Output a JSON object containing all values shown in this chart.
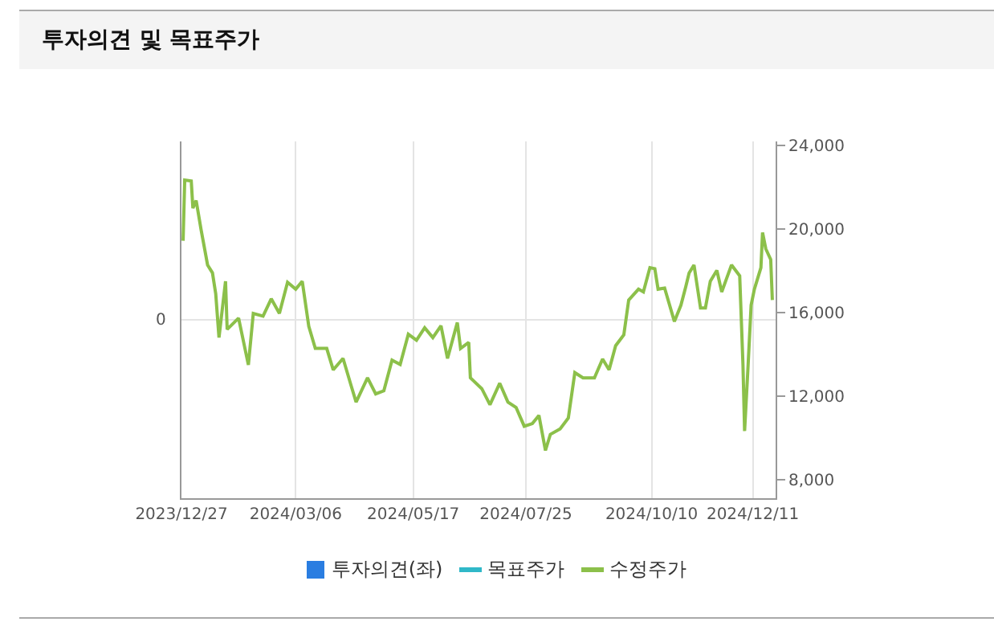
{
  "chart_data": {
    "type": "line",
    "title": "투자의견 및 목표주가",
    "x": [
      "2023-12-28",
      "2023-12-29",
      "2024-01-02",
      "2024-01-03",
      "2024-01-05",
      "2024-01-08",
      "2024-01-12",
      "2024-01-15",
      "2024-01-17",
      "2024-01-19",
      "2024-01-23",
      "2024-01-24",
      "2024-01-31",
      "2024-02-06",
      "2024-02-09",
      "2024-02-15",
      "2024-02-20",
      "2024-02-25",
      "2024-03-01",
      "2024-03-06",
      "2024-03-10",
      "2024-03-14",
      "2024-03-18",
      "2024-03-25",
      "2024-03-29",
      "2024-04-04",
      "2024-04-09",
      "2024-04-12",
      "2024-04-19",
      "2024-04-24",
      "2024-04-29",
      "2024-05-04",
      "2024-05-09",
      "2024-05-14",
      "2024-05-19",
      "2024-05-24",
      "2024-05-29",
      "2024-06-03",
      "2024-06-07",
      "2024-06-13",
      "2024-06-15",
      "2024-06-20",
      "2024-06-21",
      "2024-06-28",
      "2024-07-03",
      "2024-07-09",
      "2024-07-14",
      "2024-07-19",
      "2024-07-24",
      "2024-07-29",
      "2024-08-02",
      "2024-08-06",
      "2024-08-09",
      "2024-08-15",
      "2024-08-20",
      "2024-08-24",
      "2024-08-29",
      "2024-09-05",
      "2024-09-10",
      "2024-09-14",
      "2024-09-18",
      "2024-09-23",
      "2024-09-26",
      "2024-10-02",
      "2024-10-05",
      "2024-10-09",
      "2024-10-12",
      "2024-10-14",
      "2024-10-18",
      "2024-10-24",
      "2024-10-28",
      "2024-10-31",
      "2024-11-02",
      "2024-11-05",
      "2024-11-09",
      "2024-11-12",
      "2024-11-15",
      "2024-11-19",
      "2024-11-22",
      "2024-11-25",
      "2024-11-28",
      "2024-12-03",
      "2024-12-05",
      "2024-12-06",
      "2024-12-08",
      "2024-12-10",
      "2024-12-12",
      "2024-12-16",
      "2024-12-17",
      "2024-12-19",
      "2024-12-22",
      "2024-12-23"
    ],
    "series": [
      {
        "name": "투자의견(좌)",
        "type": "bar",
        "color": "#2a7de1",
        "values": [
          null,
          null,
          null,
          null,
          null,
          null,
          null,
          null,
          null,
          null,
          null,
          null,
          null,
          null,
          null,
          null,
          null,
          null,
          null,
          null,
          null,
          null,
          null,
          null,
          null,
          null,
          null,
          null,
          null,
          null,
          null,
          null,
          null,
          null,
          null,
          null,
          null,
          null,
          null,
          null,
          null,
          null,
          null,
          null,
          null,
          null,
          null,
          null,
          null,
          null,
          null,
          null,
          null,
          null,
          null,
          null,
          null,
          null,
          null,
          null,
          null,
          null,
          null,
          null,
          null,
          null,
          null,
          null,
          null,
          null,
          null,
          null,
          null,
          null,
          null,
          null,
          null,
          null,
          null,
          null,
          null,
          null,
          null,
          null,
          null,
          null,
          null,
          null,
          null,
          null,
          null,
          null
        ]
      },
      {
        "name": "목표주가",
        "axis": "y2",
        "color": "#30b8c8",
        "values": [
          null,
          null,
          null,
          null,
          null,
          null,
          null,
          null,
          null,
          null,
          null,
          null,
          null,
          null,
          null,
          null,
          null,
          null,
          null,
          null,
          null,
          null,
          null,
          null,
          null,
          null,
          null,
          null,
          null,
          null,
          null,
          null,
          null,
          null,
          null,
          null,
          null,
          null,
          null,
          null,
          null,
          null,
          null,
          null,
          null,
          null,
          null,
          null,
          null,
          null,
          null,
          null,
          null,
          null,
          null,
          null,
          null,
          null,
          null,
          null,
          null,
          null,
          null,
          null,
          null,
          null,
          null,
          null,
          null,
          null,
          null,
          null,
          null,
          null,
          null,
          null,
          null,
          null,
          null,
          null,
          null,
          null,
          null,
          null,
          null,
          null,
          null,
          null,
          null,
          null,
          null,
          null
        ]
      },
      {
        "name": "수정주가",
        "axis": "y2",
        "color": "#8cc04a",
        "values": [
          19440,
          22350,
          22300,
          21000,
          21370,
          19980,
          18280,
          17900,
          16890,
          14800,
          17500,
          15190,
          15730,
          13490,
          15960,
          15830,
          16660,
          15960,
          17450,
          17120,
          17500,
          15340,
          14280,
          14280,
          13250,
          13800,
          12480,
          11710,
          12870,
          12100,
          12250,
          13720,
          13510,
          14960,
          14670,
          15270,
          14800,
          15370,
          13800,
          15520,
          14280,
          14570,
          12870,
          12350,
          11580,
          12610,
          11710,
          11450,
          10550,
          10680,
          11070,
          9390,
          10160,
          10420,
          10940,
          13120,
          12870,
          12870,
          13770,
          13250,
          14410,
          14930,
          16600,
          17120,
          16990,
          18150,
          18100,
          17120,
          17170,
          15570,
          16350,
          17250,
          17890,
          18280,
          16220,
          16220,
          17500,
          18020,
          16990,
          17640,
          18280,
          17760,
          13510,
          10320,
          13250,
          16350,
          17120,
          18150,
          19830,
          19050,
          18540,
          16600
        ]
      }
    ],
    "xlim": [
      "2023-12-27",
      "2024-12-25"
    ],
    "xticks": [
      {
        "value": "2023-12-27",
        "label": "2023/12/27"
      },
      {
        "value": "2024-03-06",
        "label": "2024/03/06"
      },
      {
        "value": "2024-05-17",
        "label": "2024/05/17"
      },
      {
        "value": "2024-07-25",
        "label": "2024/07/25"
      },
      {
        "value": "2024-10-10",
        "label": "2024/10/10"
      },
      {
        "value": "2024-12-11",
        "label": "2024/12/11"
      }
    ],
    "y2lim": [
      7100,
      24200
    ],
    "y2ticks": [
      {
        "value": 8000,
        "label": "8,000"
      },
      {
        "value": 12000,
        "label": "12,000"
      },
      {
        "value": 16000,
        "label": "16,000"
      },
      {
        "value": 20000,
        "label": "20,000"
      },
      {
        "value": 24000,
        "label": "24,000"
      }
    ],
    "annotations": [
      "0"
    ],
    "grid": "x",
    "legend": "bottom",
    "marker": "none",
    "line_style": "solid"
  }
}
